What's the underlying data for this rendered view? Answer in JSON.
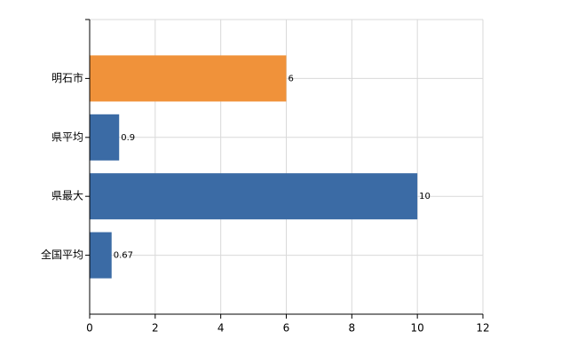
{
  "chart_data": {
    "type": "bar",
    "orientation": "horizontal",
    "categories": [
      "明石市",
      "県平均",
      "県最大",
      "全国平均"
    ],
    "values": [
      6,
      0.9,
      10,
      0.67
    ],
    "colors": [
      "#f0923a",
      "#3b6ba5",
      "#3b6ba5",
      "#3b6ba5"
    ],
    "xlim": [
      0,
      12
    ],
    "xticks": [
      0,
      2,
      4,
      6,
      8,
      10,
      12
    ],
    "grid": true
  }
}
